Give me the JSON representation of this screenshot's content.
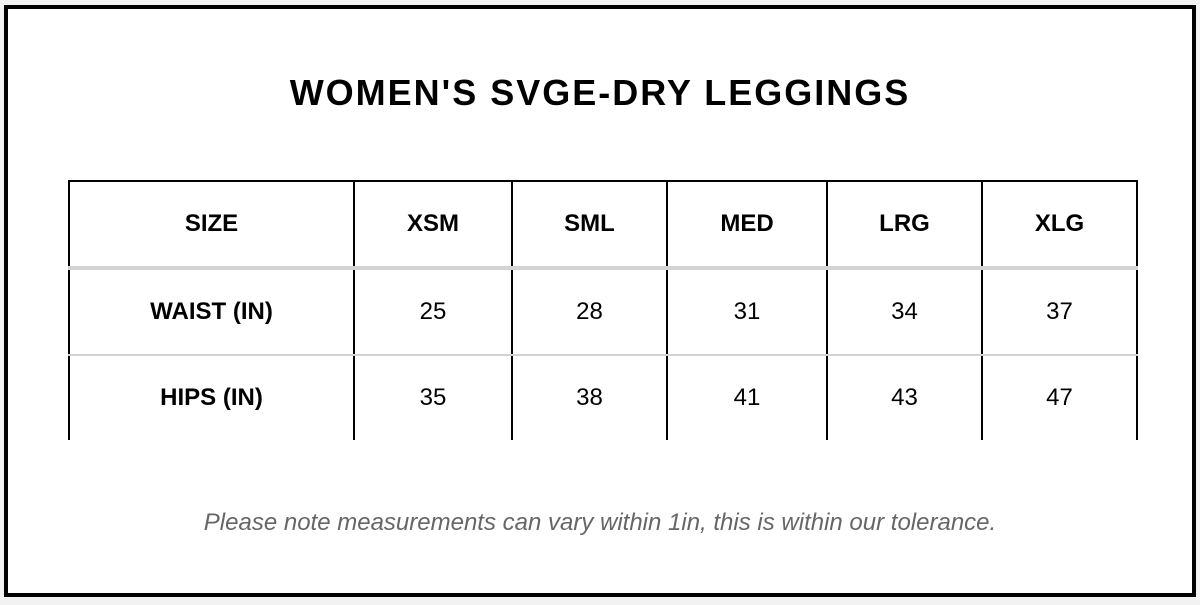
{
  "title": "WOMEN'S SVGE-DRY LEGGINGS",
  "table": {
    "headers": [
      "SIZE",
      "XSM",
      "SML",
      "MED",
      "LRG",
      "XLG"
    ],
    "rows": [
      {
        "label": "WAIST (IN)",
        "values": [
          "25",
          "28",
          "31",
          "34",
          "37"
        ]
      },
      {
        "label": "HIPS (IN)",
        "values": [
          "35",
          "38",
          "41",
          "43",
          "47"
        ]
      }
    ]
  },
  "note": "Please note measurements can vary within 1in, this is within our tolerance.",
  "colors": {
    "border": "#000000",
    "row_divider": "#d3d3d3",
    "note_text": "#666666",
    "background": "#ffffff"
  }
}
